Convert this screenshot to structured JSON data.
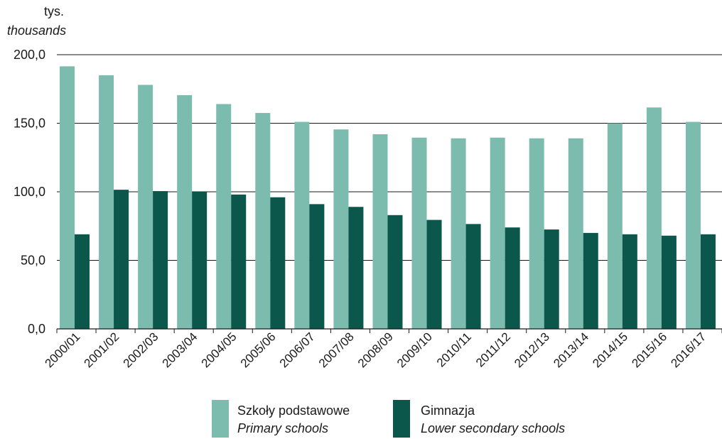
{
  "chart_data": {
    "type": "bar",
    "unit_label": "tys.",
    "unit_label_en": "thousands",
    "categories": [
      "2000/01",
      "2001/02",
      "2002/03",
      "2003/04",
      "2004/05",
      "2005/06",
      "2006/07",
      "2007/08",
      "2008/09",
      "2009/10",
      "2010/11",
      "2011/12",
      "2012/13",
      "2013/14",
      "2014/15",
      "2015/16",
      "2016/17"
    ],
    "series": [
      {
        "name": "Szkoły podstawowe",
        "name_en": "Primary schools",
        "color": "#7bbcae",
        "values": [
          191.5,
          185.0,
          178.0,
          170.5,
          164.0,
          157.5,
          151.0,
          145.5,
          142.0,
          139.5,
          139.0,
          139.5,
          139.0,
          139.0,
          150.0,
          161.5,
          151.0
        ]
      },
      {
        "name": "Gimnazja",
        "name_en": "Lower secondary schools",
        "color": "#0c574b",
        "values": [
          69.0,
          101.5,
          100.5,
          100.0,
          98.0,
          96.0,
          91.0,
          89.0,
          83.0,
          79.5,
          76.5,
          74.0,
          72.5,
          70.0,
          69.0,
          68.0,
          69.0
        ]
      }
    ],
    "yticks": [
      "0,0",
      "50,0",
      "100,0",
      "150,0",
      "200,0"
    ],
    "ylim": [
      0,
      200
    ],
    "grid": true,
    "legend_position": "bottom-center"
  }
}
